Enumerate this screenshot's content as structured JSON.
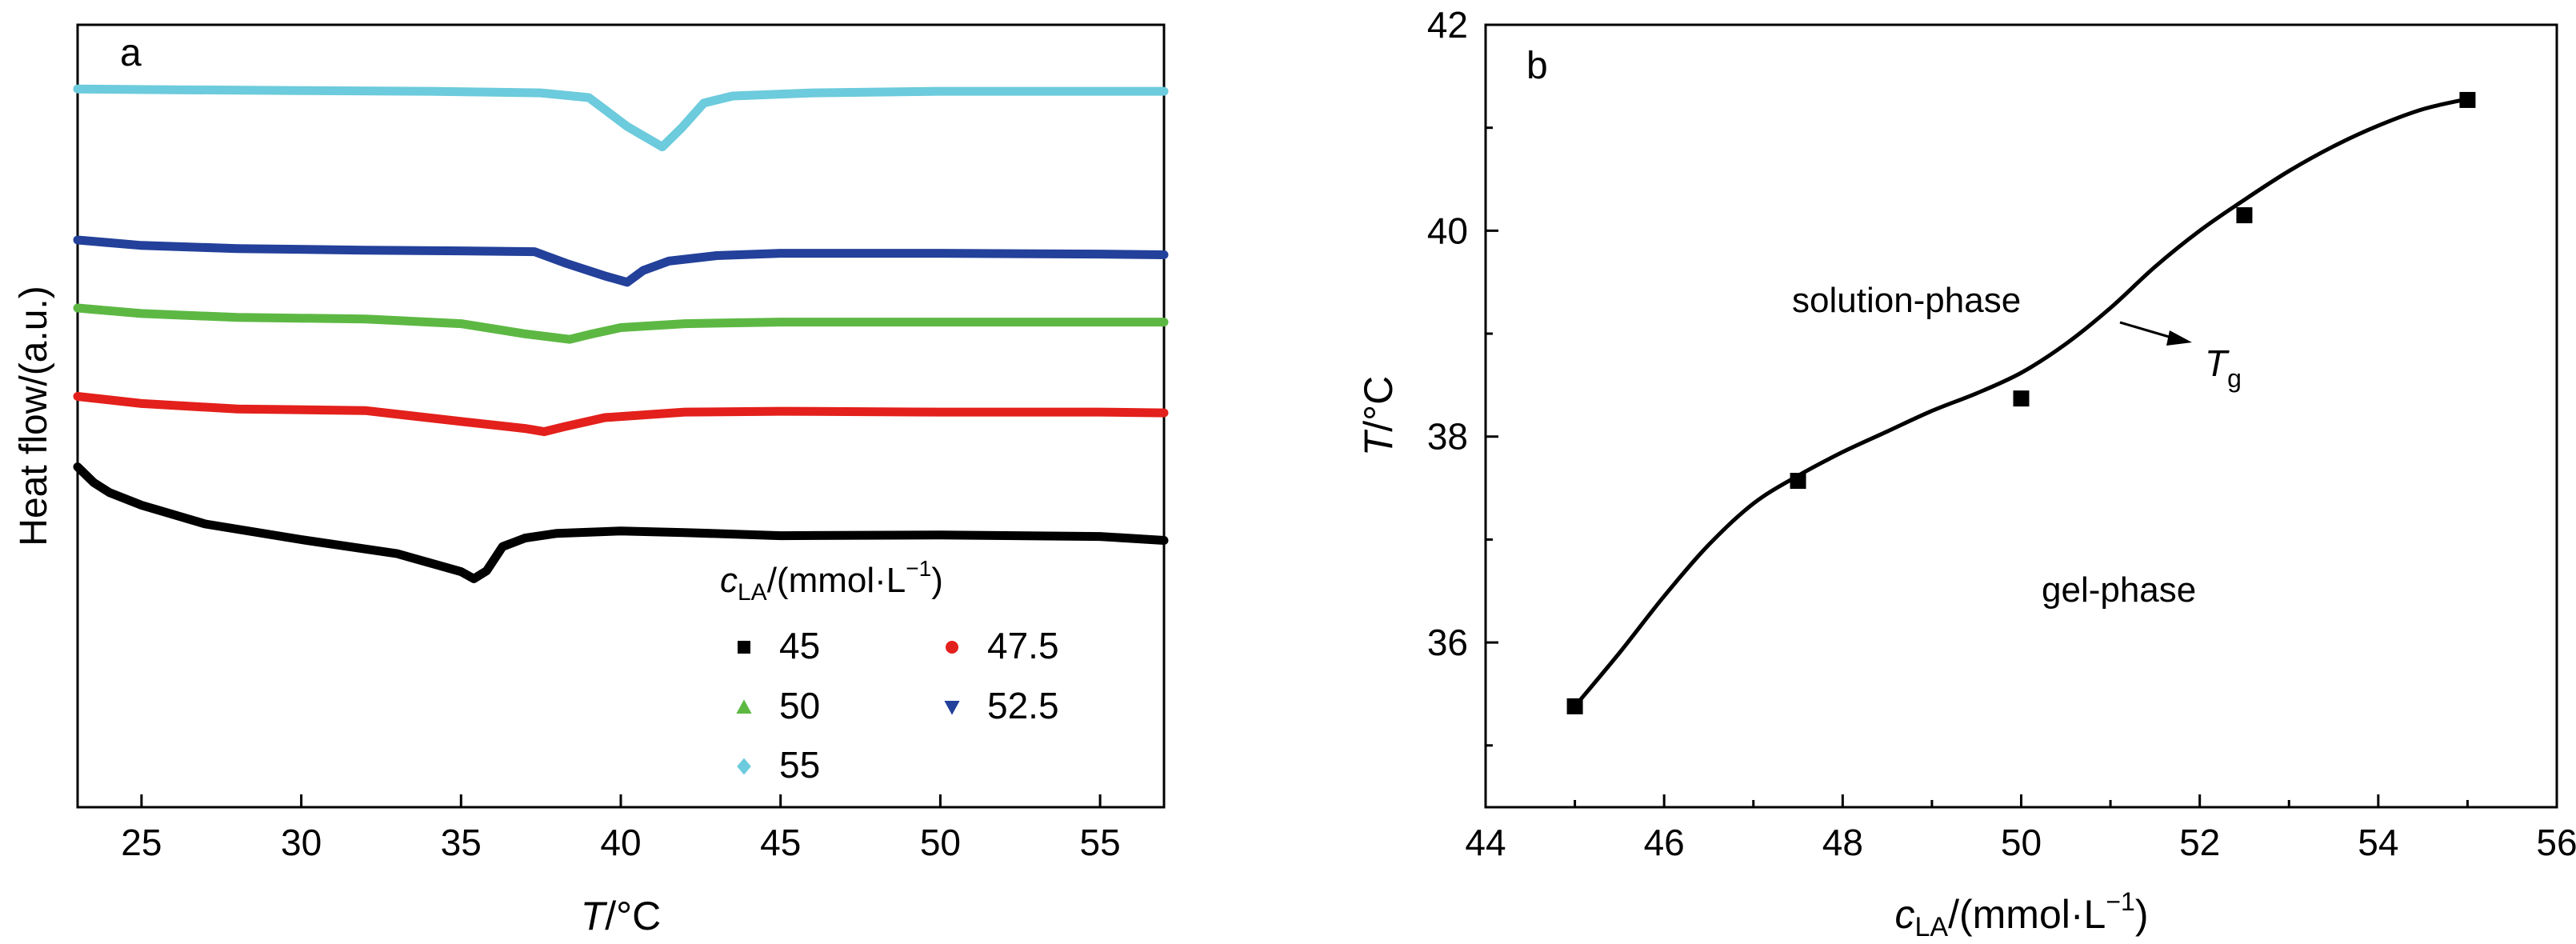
{
  "chart_data": [
    {
      "type": "line",
      "panel_label": "a",
      "xlabel_var": "T",
      "xlabel_unit": "/°C",
      "ylabel": "Heat flow/(a.u.)",
      "xlim": [
        23,
        57
      ],
      "ylim": [
        0,
        100
      ],
      "xticks": [
        25,
        30,
        35,
        40,
        45,
        50,
        55
      ],
      "yticks_shown": false,
      "legend": {
        "title_var": "c",
        "title_sub": "LA",
        "title_unit": "/(mmol·L",
        "title_sup": "−1",
        "title_close": ")",
        "placement": "bottom-right"
      },
      "series": [
        {
          "name": "45",
          "color": "#000000",
          "marker": "square",
          "points": [
            [
              23,
              43.5
            ],
            [
              23.5,
              41.5
            ],
            [
              24,
              40.2
            ],
            [
              25,
              38.6
            ],
            [
              27,
              36.2
            ],
            [
              30,
              34.2
            ],
            [
              33,
              32.4
            ],
            [
              35,
              30.1
            ],
            [
              35.4,
              29.2
            ],
            [
              35.8,
              30.2
            ],
            [
              36.3,
              33.3
            ],
            [
              37,
              34.4
            ],
            [
              38,
              35.0
            ],
            [
              40,
              35.3
            ],
            [
              42,
              35.1
            ],
            [
              45,
              34.7
            ],
            [
              50,
              34.8
            ],
            [
              55,
              34.6
            ],
            [
              57,
              34.1
            ]
          ]
        },
        {
          "name": "47.5",
          "color": "#e3201b",
          "marker": "circle",
          "points": [
            [
              23,
              52.5
            ],
            [
              25,
              51.6
            ],
            [
              28,
              50.9
            ],
            [
              32,
              50.7
            ],
            [
              35,
              49.3
            ],
            [
              37,
              48.4
            ],
            [
              37.6,
              48.0
            ],
            [
              38.2,
              48.6
            ],
            [
              39.5,
              49.8
            ],
            [
              42,
              50.5
            ],
            [
              45,
              50.6
            ],
            [
              50,
              50.5
            ],
            [
              55,
              50.5
            ],
            [
              57,
              50.4
            ]
          ]
        },
        {
          "name": "50",
          "color": "#5db843",
          "marker": "triangle-up",
          "points": [
            [
              23,
              63.8
            ],
            [
              25,
              63.1
            ],
            [
              28,
              62.6
            ],
            [
              32,
              62.4
            ],
            [
              35,
              61.8
            ],
            [
              37,
              60.5
            ],
            [
              38.4,
              59.8
            ],
            [
              39,
              60.4
            ],
            [
              40,
              61.3
            ],
            [
              42,
              61.8
            ],
            [
              45,
              62.0
            ],
            [
              50,
              62.0
            ],
            [
              55,
              62.0
            ],
            [
              57,
              62.0
            ]
          ]
        },
        {
          "name": "52.5",
          "color": "#23409a",
          "marker": "triangle-down",
          "points": [
            [
              23,
              72.5
            ],
            [
              25,
              71.8
            ],
            [
              28,
              71.4
            ],
            [
              32,
              71.2
            ],
            [
              35,
              71.1
            ],
            [
              37.3,
              71.0
            ],
            [
              38.3,
              69.5
            ],
            [
              39.5,
              67.9
            ],
            [
              40.2,
              67.1
            ],
            [
              40.7,
              68.6
            ],
            [
              41.5,
              69.8
            ],
            [
              43,
              70.5
            ],
            [
              45,
              70.8
            ],
            [
              50,
              70.8
            ],
            [
              55,
              70.7
            ],
            [
              57,
              70.6
            ]
          ]
        },
        {
          "name": "55",
          "color": "#6ccbdc",
          "marker": "diamond",
          "points": [
            [
              23,
              91.8
            ],
            [
              26,
              91.7
            ],
            [
              30,
              91.6
            ],
            [
              34,
              91.5
            ],
            [
              37.5,
              91.3
            ],
            [
              39,
              90.7
            ],
            [
              40.2,
              87.0
            ],
            [
              41.3,
              84.4
            ],
            [
              41.9,
              86.8
            ],
            [
              42.6,
              90.0
            ],
            [
              43.5,
              90.9
            ],
            [
              46,
              91.3
            ],
            [
              50,
              91.5
            ],
            [
              55,
              91.5
            ],
            [
              57,
              91.5
            ]
          ]
        }
      ]
    },
    {
      "type": "scatter",
      "panel_label": "b",
      "xlabel_var": "c",
      "xlabel_sub": "LA",
      "xlabel_unit": "/(mmol·L",
      "xlabel_sup": "−1",
      "xlabel_close": ")",
      "ylabel_var": "T",
      "ylabel_unit": "/°C",
      "xlim": [
        44,
        56
      ],
      "ylim": [
        34.4,
        42
      ],
      "xticks": [
        44,
        46,
        48,
        50,
        52,
        54,
        56
      ],
      "yticks": [
        36,
        38,
        40,
        42
      ],
      "points": {
        "x": [
          45,
          47.5,
          50,
          52.5,
          55
        ],
        "y": [
          35.38,
          37.57,
          38.37,
          40.15,
          41.27
        ]
      },
      "fit_curve": {
        "x": [
          45,
          45.5,
          46,
          46.5,
          47,
          47.5,
          48,
          48.5,
          49,
          49.5,
          50,
          50.5,
          51,
          51.5,
          52,
          52.5,
          53,
          53.5,
          54,
          54.5,
          55
        ],
        "y": [
          35.38,
          35.9,
          36.45,
          36.95,
          37.35,
          37.62,
          37.85,
          38.05,
          38.25,
          38.42,
          38.62,
          38.9,
          39.25,
          39.65,
          40.0,
          40.3,
          40.58,
          40.82,
          41.02,
          41.18,
          41.28
        ]
      },
      "annotations": {
        "region_top": "solution-phase",
        "region_bottom": "gel-phase",
        "curve_label_var": "T",
        "curve_label_sub": "g"
      }
    }
  ]
}
